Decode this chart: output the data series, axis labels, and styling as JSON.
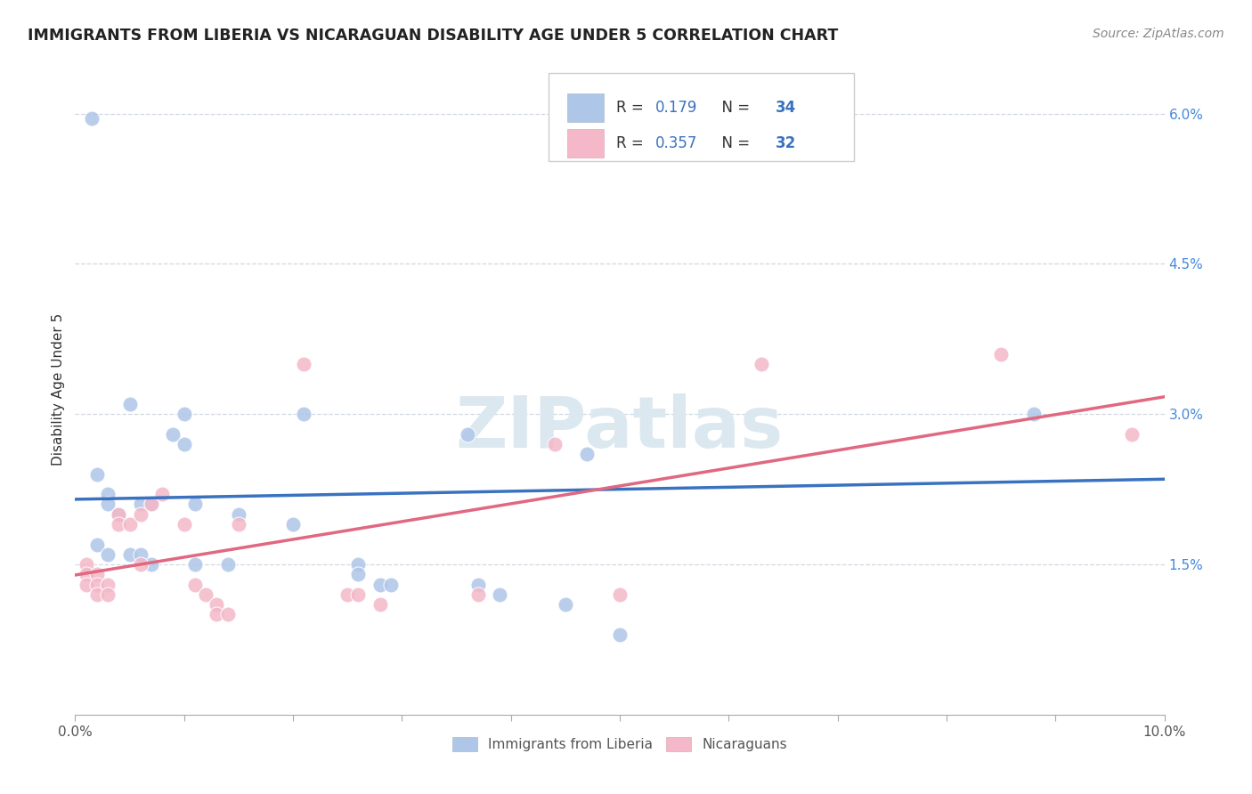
{
  "title": "IMMIGRANTS FROM LIBERIA VS NICARAGUAN DISABILITY AGE UNDER 5 CORRELATION CHART",
  "source": "Source: ZipAtlas.com",
  "ylabel": "Disability Age Under 5",
  "legend_label1": "Immigrants from Liberia",
  "legend_label2": "Nicaraguans",
  "r1": "0.179",
  "n1": "34",
  "r2": "0.357",
  "n2": "32",
  "xlim": [
    0.0,
    0.1
  ],
  "ylim": [
    0.0,
    0.065
  ],
  "color_blue": "#aec6e8",
  "color_pink": "#f4b8c8",
  "line_color_blue": "#3a72c0",
  "line_color_pink": "#e06880",
  "background_color": "#ffffff",
  "watermark": "ZIPatlas",
  "blue_points": [
    [
      0.0015,
      0.0595
    ],
    [
      0.054,
      0.057
    ],
    [
      0.005,
      0.031
    ],
    [
      0.01,
      0.03
    ],
    [
      0.009,
      0.028
    ],
    [
      0.01,
      0.027
    ],
    [
      0.021,
      0.03
    ],
    [
      0.036,
      0.028
    ],
    [
      0.047,
      0.026
    ],
    [
      0.002,
      0.024
    ],
    [
      0.003,
      0.022
    ],
    [
      0.003,
      0.021
    ],
    [
      0.004,
      0.02
    ],
    [
      0.006,
      0.021
    ],
    [
      0.007,
      0.021
    ],
    [
      0.011,
      0.021
    ],
    [
      0.015,
      0.02
    ],
    [
      0.02,
      0.019
    ],
    [
      0.002,
      0.017
    ],
    [
      0.003,
      0.016
    ],
    [
      0.005,
      0.016
    ],
    [
      0.006,
      0.016
    ],
    [
      0.007,
      0.015
    ],
    [
      0.011,
      0.015
    ],
    [
      0.014,
      0.015
    ],
    [
      0.026,
      0.015
    ],
    [
      0.026,
      0.014
    ],
    [
      0.028,
      0.013
    ],
    [
      0.029,
      0.013
    ],
    [
      0.037,
      0.013
    ],
    [
      0.039,
      0.012
    ],
    [
      0.045,
      0.011
    ],
    [
      0.05,
      0.008
    ],
    [
      0.088,
      0.03
    ]
  ],
  "pink_points": [
    [
      0.001,
      0.015
    ],
    [
      0.001,
      0.014
    ],
    [
      0.001,
      0.013
    ],
    [
      0.002,
      0.014
    ],
    [
      0.002,
      0.013
    ],
    [
      0.002,
      0.012
    ],
    [
      0.003,
      0.013
    ],
    [
      0.003,
      0.012
    ],
    [
      0.004,
      0.02
    ],
    [
      0.004,
      0.019
    ],
    [
      0.005,
      0.019
    ],
    [
      0.006,
      0.02
    ],
    [
      0.006,
      0.015
    ],
    [
      0.007,
      0.021
    ],
    [
      0.008,
      0.022
    ],
    [
      0.01,
      0.019
    ],
    [
      0.011,
      0.013
    ],
    [
      0.012,
      0.012
    ],
    [
      0.013,
      0.011
    ],
    [
      0.013,
      0.01
    ],
    [
      0.014,
      0.01
    ],
    [
      0.015,
      0.019
    ],
    [
      0.021,
      0.035
    ],
    [
      0.025,
      0.012
    ],
    [
      0.026,
      0.012
    ],
    [
      0.028,
      0.011
    ],
    [
      0.037,
      0.012
    ],
    [
      0.044,
      0.027
    ],
    [
      0.05,
      0.012
    ],
    [
      0.063,
      0.035
    ],
    [
      0.085,
      0.036
    ],
    [
      0.097,
      0.028
    ]
  ]
}
